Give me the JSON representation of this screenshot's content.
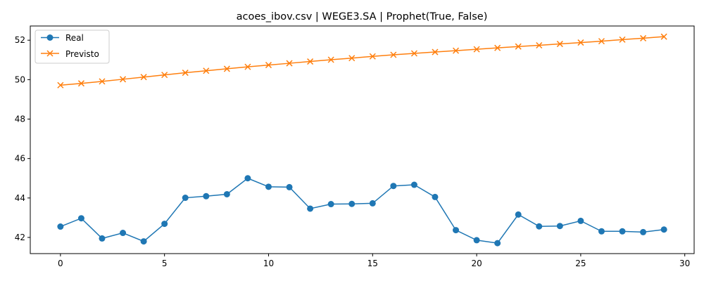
{
  "chart_data": {
    "type": "line",
    "title": "acoes_ibov.csv | WEGE3.SA | Prophet(True, False)",
    "xlabel": "",
    "ylabel": "",
    "xlim": [
      -1.45,
      30.45
    ],
    "ylim": [
      41.18,
      52.72
    ],
    "xticks": [
      0,
      5,
      10,
      15,
      20,
      25,
      30
    ],
    "yticks": [
      42,
      44,
      46,
      48,
      50,
      52
    ],
    "grid": false,
    "legend_position": "upper left",
    "x": [
      0,
      1,
      2,
      3,
      4,
      5,
      6,
      7,
      8,
      9,
      10,
      11,
      12,
      13,
      14,
      15,
      16,
      17,
      18,
      19,
      20,
      21,
      22,
      23,
      24,
      25,
      26,
      27,
      28,
      29
    ],
    "series": [
      {
        "name": "Real",
        "color": "#1f77b4",
        "marker": "circle",
        "values": [
          42.55,
          42.97,
          41.95,
          42.23,
          41.8,
          42.69,
          44.01,
          44.09,
          44.19,
          45.0,
          44.57,
          44.55,
          43.46,
          43.69,
          43.7,
          43.73,
          44.61,
          44.67,
          44.05,
          42.37,
          41.86,
          41.71,
          43.16,
          42.56,
          42.58,
          42.84,
          42.31,
          42.31,
          42.27,
          42.4
        ]
      },
      {
        "name": "Previsto",
        "color": "#ff7f0e",
        "marker": "x",
        "values": [
          49.72,
          49.81,
          49.91,
          50.02,
          50.13,
          50.24,
          50.35,
          50.45,
          50.55,
          50.65,
          50.74,
          50.83,
          50.92,
          51.01,
          51.09,
          51.18,
          51.26,
          51.33,
          51.4,
          51.47,
          51.54,
          51.61,
          51.68,
          51.74,
          51.81,
          51.88,
          51.95,
          52.03,
          52.1,
          52.18
        ]
      }
    ]
  }
}
